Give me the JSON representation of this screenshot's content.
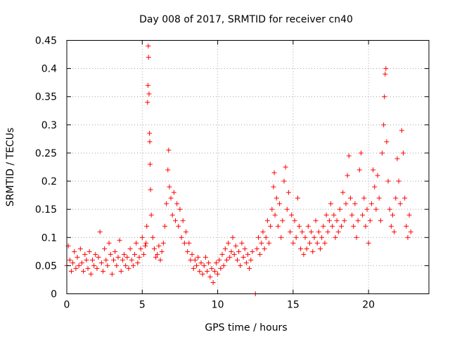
{
  "chart_data": {
    "type": "scatter",
    "title": "Day 008 of 2017, SRMTID for receiver cn40",
    "xlabel": "GPS time / hours",
    "ylabel": "SRMTID / TECUs",
    "xlim": [
      0,
      24
    ],
    "ylim": [
      0,
      0.45
    ],
    "xticks": [
      0,
      5,
      10,
      15,
      20
    ],
    "xtick_labels": [
      "0",
      "5",
      "10",
      "15",
      "20"
    ],
    "yticks": [
      0,
      0.05,
      0.1,
      0.15,
      0.2,
      0.25,
      0.3,
      0.35,
      0.4,
      0.45
    ],
    "ytick_labels": [
      "0",
      "0.05",
      "0.1",
      "0.15",
      "0.2",
      "0.25",
      "0.3",
      "0.35",
      "0.4",
      "0.45"
    ],
    "grid": true,
    "marker": "plus",
    "color": "#ff0000",
    "series": [
      {
        "name": "SRMTID",
        "points": [
          [
            0.0,
            0.05
          ],
          [
            0.1,
            0.085
          ],
          [
            0.2,
            0.06
          ],
          [
            0.3,
            0.04
          ],
          [
            0.4,
            0.055
          ],
          [
            0.5,
            0.075
          ],
          [
            0.6,
            0.045
          ],
          [
            0.7,
            0.065
          ],
          [
            0.8,
            0.05
          ],
          [
            0.9,
            0.08
          ],
          [
            1.0,
            0.055
          ],
          [
            1.1,
            0.04
          ],
          [
            1.2,
            0.07
          ],
          [
            1.3,
            0.06
          ],
          [
            1.4,
            0.045
          ],
          [
            1.5,
            0.075
          ],
          [
            1.6,
            0.035
          ],
          [
            1.7,
            0.06
          ],
          [
            1.8,
            0.05
          ],
          [
            1.9,
            0.07
          ],
          [
            2.0,
            0.045
          ],
          [
            2.1,
            0.065
          ],
          [
            2.2,
            0.11
          ],
          [
            2.3,
            0.055
          ],
          [
            2.4,
            0.04
          ],
          [
            2.5,
            0.08
          ],
          [
            2.6,
            0.06
          ],
          [
            2.7,
            0.05
          ],
          [
            2.8,
            0.09
          ],
          [
            2.9,
            0.07
          ],
          [
            3.0,
            0.035
          ],
          [
            3.1,
            0.06
          ],
          [
            3.2,
            0.075
          ],
          [
            3.3,
            0.05
          ],
          [
            3.4,
            0.065
          ],
          [
            3.5,
            0.095
          ],
          [
            3.6,
            0.04
          ],
          [
            3.7,
            0.06
          ],
          [
            3.8,
            0.07
          ],
          [
            3.9,
            0.05
          ],
          [
            4.0,
            0.065
          ],
          [
            4.1,
            0.045
          ],
          [
            4.2,
            0.08
          ],
          [
            4.3,
            0.06
          ],
          [
            4.4,
            0.05
          ],
          [
            4.5,
            0.07
          ],
          [
            4.6,
            0.09
          ],
          [
            4.7,
            0.055
          ],
          [
            4.8,
            0.065
          ],
          [
            4.9,
            0.08
          ],
          [
            5.0,
            0.1
          ],
          [
            5.1,
            0.07
          ],
          [
            5.2,
            0.085
          ],
          [
            5.25,
            0.09
          ],
          [
            5.3,
            0.12
          ],
          [
            5.35,
            0.34
          ],
          [
            5.38,
            0.37
          ],
          [
            5.4,
            0.44
          ],
          [
            5.42,
            0.42
          ],
          [
            5.45,
            0.355
          ],
          [
            5.48,
            0.285
          ],
          [
            5.5,
            0.27
          ],
          [
            5.52,
            0.23
          ],
          [
            5.55,
            0.185
          ],
          [
            5.6,
            0.14
          ],
          [
            5.7,
            0.1
          ],
          [
            5.8,
            0.08
          ],
          [
            5.9,
            0.065
          ],
          [
            6.0,
            0.07
          ],
          [
            6.1,
            0.085
          ],
          [
            6.2,
            0.06
          ],
          [
            6.3,
            0.075
          ],
          [
            6.4,
            0.09
          ],
          [
            6.5,
            0.12
          ],
          [
            6.6,
            0.16
          ],
          [
            6.7,
            0.22
          ],
          [
            6.75,
            0.255
          ],
          [
            6.8,
            0.19
          ],
          [
            6.9,
            0.17
          ],
          [
            7.0,
            0.14
          ],
          [
            7.1,
            0.18
          ],
          [
            7.2,
            0.13
          ],
          [
            7.3,
            0.16
          ],
          [
            7.4,
            0.12
          ],
          [
            7.5,
            0.15
          ],
          [
            7.6,
            0.1
          ],
          [
            7.7,
            0.13
          ],
          [
            7.8,
            0.09
          ],
          [
            7.9,
            0.11
          ],
          [
            8.0,
            0.075
          ],
          [
            8.1,
            0.09
          ],
          [
            8.2,
            0.06
          ],
          [
            8.3,
            0.07
          ],
          [
            8.4,
            0.045
          ],
          [
            8.5,
            0.06
          ],
          [
            8.6,
            0.05
          ],
          [
            8.7,
            0.065
          ],
          [
            8.8,
            0.04
          ],
          [
            8.9,
            0.055
          ],
          [
            9.0,
            0.035
          ],
          [
            9.1,
            0.05
          ],
          [
            9.2,
            0.065
          ],
          [
            9.3,
            0.04
          ],
          [
            9.4,
            0.055
          ],
          [
            9.5,
            0.03
          ],
          [
            9.6,
            0.045
          ],
          [
            9.7,
            0.02
          ],
          [
            9.8,
            0.04
          ],
          [
            9.9,
            0.055
          ],
          [
            10.0,
            0.035
          ],
          [
            10.1,
            0.06
          ],
          [
            10.2,
            0.045
          ],
          [
            10.3,
            0.07
          ],
          [
            10.4,
            0.05
          ],
          [
            10.5,
            0.08
          ],
          [
            10.6,
            0.06
          ],
          [
            10.7,
            0.09
          ],
          [
            10.8,
            0.065
          ],
          [
            10.9,
            0.075
          ],
          [
            11.0,
            0.1
          ],
          [
            11.1,
            0.07
          ],
          [
            11.2,
            0.085
          ],
          [
            11.3,
            0.06
          ],
          [
            11.4,
            0.075
          ],
          [
            11.5,
            0.05
          ],
          [
            11.6,
            0.09
          ],
          [
            11.7,
            0.065
          ],
          [
            11.8,
            0.08
          ],
          [
            11.9,
            0.055
          ],
          [
            12.0,
            0.07
          ],
          [
            12.1,
            0.045
          ],
          [
            12.2,
            0.06
          ],
          [
            12.3,
            0.075
          ],
          [
            12.5,
            0.0
          ],
          [
            12.6,
            0.08
          ],
          [
            12.7,
            0.1
          ],
          [
            12.8,
            0.07
          ],
          [
            12.9,
            0.09
          ],
          [
            13.0,
            0.11
          ],
          [
            13.1,
            0.08
          ],
          [
            13.2,
            0.1
          ],
          [
            13.3,
            0.13
          ],
          [
            13.4,
            0.09
          ],
          [
            13.5,
            0.12
          ],
          [
            13.6,
            0.15
          ],
          [
            13.7,
            0.19
          ],
          [
            13.75,
            0.215
          ],
          [
            13.8,
            0.14
          ],
          [
            13.9,
            0.17
          ],
          [
            14.0,
            0.12
          ],
          [
            14.1,
            0.16
          ],
          [
            14.2,
            0.1
          ],
          [
            14.3,
            0.13
          ],
          [
            14.4,
            0.2
          ],
          [
            14.5,
            0.225
          ],
          [
            14.6,
            0.15
          ],
          [
            14.7,
            0.18
          ],
          [
            14.8,
            0.11
          ],
          [
            14.9,
            0.14
          ],
          [
            15.0,
            0.09
          ],
          [
            15.1,
            0.13
          ],
          [
            15.2,
            0.1
          ],
          [
            15.3,
            0.17
          ],
          [
            15.4,
            0.12
          ],
          [
            15.5,
            0.08
          ],
          [
            15.6,
            0.11
          ],
          [
            15.7,
            0.07
          ],
          [
            15.8,
            0.1
          ],
          [
            15.9,
            0.08
          ],
          [
            16.0,
            0.12
          ],
          [
            16.1,
            0.09
          ],
          [
            16.2,
            0.11
          ],
          [
            16.3,
            0.075
          ],
          [
            16.4,
            0.1
          ],
          [
            16.5,
            0.13
          ],
          [
            16.6,
            0.09
          ],
          [
            16.7,
            0.11
          ],
          [
            16.8,
            0.08
          ],
          [
            16.9,
            0.1
          ],
          [
            17.0,
            0.12
          ],
          [
            17.1,
            0.09
          ],
          [
            17.2,
            0.14
          ],
          [
            17.3,
            0.11
          ],
          [
            17.4,
            0.13
          ],
          [
            17.5,
            0.16
          ],
          [
            17.6,
            0.12
          ],
          [
            17.7,
            0.14
          ],
          [
            17.8,
            0.1
          ],
          [
            17.9,
            0.13
          ],
          [
            18.0,
            0.11
          ],
          [
            18.1,
            0.15
          ],
          [
            18.2,
            0.12
          ],
          [
            18.3,
            0.18
          ],
          [
            18.4,
            0.13
          ],
          [
            18.5,
            0.16
          ],
          [
            18.6,
            0.21
          ],
          [
            18.7,
            0.245
          ],
          [
            18.8,
            0.17
          ],
          [
            18.9,
            0.14
          ],
          [
            19.0,
            0.12
          ],
          [
            19.1,
            0.16
          ],
          [
            19.2,
            0.1
          ],
          [
            19.3,
            0.13
          ],
          [
            19.4,
            0.22
          ],
          [
            19.5,
            0.25
          ],
          [
            19.6,
            0.14
          ],
          [
            19.7,
            0.17
          ],
          [
            19.8,
            0.12
          ],
          [
            19.9,
            0.15
          ],
          [
            20.0,
            0.09
          ],
          [
            20.1,
            0.13
          ],
          [
            20.2,
            0.16
          ],
          [
            20.3,
            0.22
          ],
          [
            20.4,
            0.19
          ],
          [
            20.5,
            0.15
          ],
          [
            20.6,
            0.21
          ],
          [
            20.7,
            0.17
          ],
          [
            20.8,
            0.13
          ],
          [
            20.9,
            0.25
          ],
          [
            21.0,
            0.3
          ],
          [
            21.05,
            0.35
          ],
          [
            21.1,
            0.39
          ],
          [
            21.15,
            0.4
          ],
          [
            21.2,
            0.27
          ],
          [
            21.3,
            0.2
          ],
          [
            21.4,
            0.15
          ],
          [
            21.5,
            0.12
          ],
          [
            21.6,
            0.14
          ],
          [
            21.7,
            0.11
          ],
          [
            21.8,
            0.17
          ],
          [
            21.9,
            0.24
          ],
          [
            22.0,
            0.2
          ],
          [
            22.1,
            0.16
          ],
          [
            22.2,
            0.29
          ],
          [
            22.3,
            0.25
          ],
          [
            22.4,
            0.17
          ],
          [
            22.5,
            0.12
          ],
          [
            22.6,
            0.1
          ],
          [
            22.7,
            0.14
          ],
          [
            22.8,
            0.11
          ]
        ]
      }
    ]
  }
}
